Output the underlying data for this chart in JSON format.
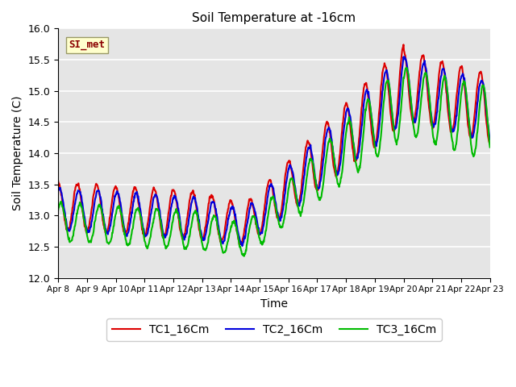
{
  "title": "Soil Temperature at -16cm",
  "xlabel": "Time",
  "ylabel": "Soil Temperature (C)",
  "ylim": [
    12.0,
    16.0
  ],
  "yticks": [
    12.0,
    12.5,
    13.0,
    13.5,
    14.0,
    14.5,
    15.0,
    15.5,
    16.0
  ],
  "background_color": "#e5e5e5",
  "fig_background": "#ffffff",
  "grid_color": "#ffffff",
  "series": {
    "TC1_16Cm": {
      "color": "#dd0000",
      "linewidth": 1.5
    },
    "TC2_16Cm": {
      "color": "#0000dd",
      "linewidth": 1.5
    },
    "TC3_16Cm": {
      "color": "#00bb00",
      "linewidth": 1.5
    }
  },
  "annotation": {
    "text": "SI_met",
    "fontsize": 9,
    "color": "#8b0000",
    "bbox_facecolor": "#ffffcc",
    "bbox_edgecolor": "#999966"
  },
  "xtick_labels": [
    "Apr 8",
    "Apr 9",
    "Apr 10",
    "Apr 11",
    "Apr 12",
    "Apr 13",
    "Apr 14",
    "Apr 15",
    "Apr 16",
    "Apr 17",
    "Apr 18",
    "Apr 19",
    "Apr 20",
    "Apr 21",
    "Apr 22",
    "Apr 23"
  ],
  "legend_ncol": 3,
  "figsize": [
    6.4,
    4.8
  ],
  "dpi": 100
}
